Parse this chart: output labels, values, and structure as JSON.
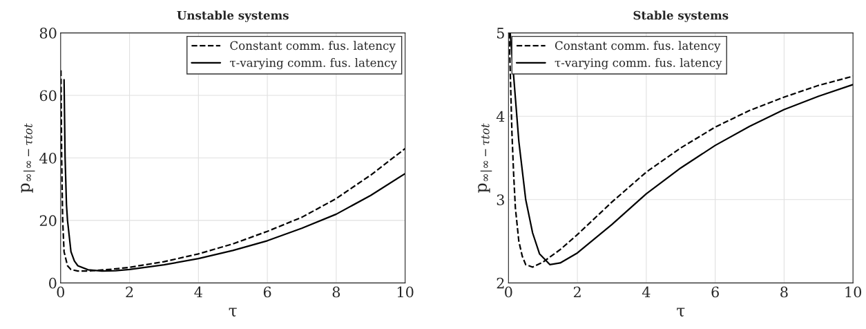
{
  "chart_data": [
    {
      "type": "line",
      "title": "Unstable systems",
      "xlabel": "τ",
      "ylabel": "p$_{∞|∞−τtot}$",
      "xlim": [
        0,
        10
      ],
      "ylim": [
        0,
        80
      ],
      "xticks": [
        0,
        2,
        4,
        6,
        8,
        10
      ],
      "yticks": [
        0,
        20,
        40,
        60,
        80
      ],
      "grid": true,
      "legend": "top right",
      "series": [
        {
          "name": "Constant comm. fus. latency",
          "color": "#000000",
          "line_style": "dashed",
          "x": [
            0.01,
            0.03,
            0.06,
            0.1,
            0.2,
            0.3,
            0.5,
            0.8,
            1,
            1.5,
            2,
            3,
            4,
            5,
            6,
            7,
            8,
            9,
            10
          ],
          "values": [
            68,
            40,
            20,
            10,
            5.5,
            4.3,
            3.8,
            3.8,
            4,
            4.4,
            5,
            6.8,
            9.3,
            12.5,
            16.5,
            21,
            27,
            34.5,
            43
          ]
        },
        {
          "name": "τ-varying comm. fus. latency",
          "color": "#000000",
          "line_style": "solid",
          "x": [
            0.1,
            0.13,
            0.17,
            0.2,
            0.3,
            0.4,
            0.5,
            0.8,
            1.2,
            1.6,
            2,
            3,
            4,
            5,
            6,
            7,
            8,
            9,
            10
          ],
          "values": [
            65,
            40,
            25,
            20,
            10,
            7,
            5.5,
            4.2,
            3.8,
            3.9,
            4.3,
            5.8,
            7.8,
            10.4,
            13.5,
            17.5,
            22,
            28,
            35
          ]
        }
      ]
    },
    {
      "type": "line",
      "title": "Stable systems",
      "xlabel": "τ",
      "ylabel": "p$_{∞|∞−τtot}$",
      "xlim": [
        0,
        10
      ],
      "ylim": [
        2,
        5
      ],
      "xticks": [
        0,
        2,
        4,
        6,
        8,
        10
      ],
      "yticks": [
        2,
        3,
        4,
        5
      ],
      "grid": true,
      "legend": "top left",
      "series": [
        {
          "name": "Constant comm. fus. latency",
          "color": "#000000",
          "line_style": "dashed",
          "x": [
            0.02,
            0.1,
            0.15,
            0.2,
            0.3,
            0.4,
            0.5,
            0.7,
            1,
            1.5,
            2,
            3,
            4,
            5,
            6,
            7,
            8,
            9,
            10
          ],
          "values": [
            5,
            3.8,
            3.3,
            2.9,
            2.5,
            2.32,
            2.22,
            2.19,
            2.25,
            2.4,
            2.58,
            2.97,
            3.33,
            3.62,
            3.87,
            4.07,
            4.23,
            4.37,
            4.48
          ]
        },
        {
          "name": "τ-varying comm. fus. latency",
          "color": "#000000",
          "line_style": "solid",
          "x": [
            0.05,
            0.3,
            0.5,
            0.7,
            0.9,
            1.2,
            1.5,
            2,
            3,
            4,
            5,
            6,
            7,
            8,
            9,
            10
          ],
          "values": [
            5,
            3.7,
            3.0,
            2.6,
            2.35,
            2.22,
            2.24,
            2.36,
            2.7,
            3.07,
            3.38,
            3.65,
            3.88,
            4.08,
            4.24,
            4.38
          ]
        }
      ]
    }
  ]
}
